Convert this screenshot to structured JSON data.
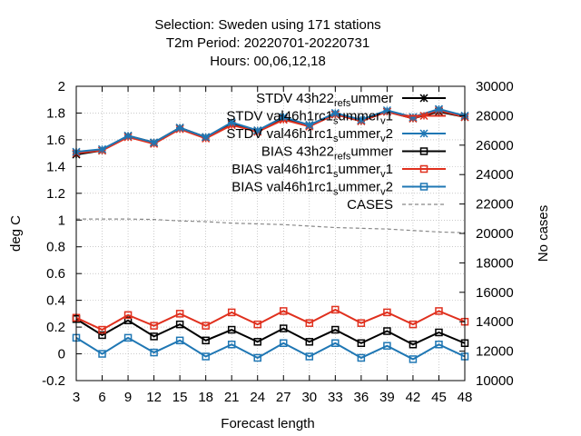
{
  "chart_data": {
    "type": "line",
    "title_lines": [
      "Selection: Sweden using   171 stations",
      "T2m   Period: 20220701-20220731",
      "Hours:  00,06,12,18"
    ],
    "xlabel": "Forecast length",
    "ylabel": "deg C",
    "y2label": "No cases",
    "x": [
      3,
      6,
      9,
      12,
      15,
      18,
      21,
      24,
      27,
      30,
      33,
      36,
      39,
      42,
      45,
      48
    ],
    "ylim": [
      -0.2,
      2.0
    ],
    "yticks": [
      "-0.2",
      "0",
      "0.2",
      "0.4",
      "0.6",
      "0.8",
      "1",
      "1.2",
      "1.4",
      "1.6",
      "1.8",
      "2"
    ],
    "y2lim": [
      10000,
      30000
    ],
    "y2ticks": [
      "10000",
      "12000",
      "14000",
      "16000",
      "18000",
      "20000",
      "22000",
      "24000",
      "26000",
      "28000",
      "30000"
    ],
    "grid": true,
    "legend_position": "top-right",
    "series": [
      {
        "name": "STDV 43h22_ref_summer",
        "color": "#000000",
        "marker": "star",
        "dash": "",
        "axis": "y1",
        "values": [
          1.49,
          1.52,
          1.63,
          1.58,
          1.69,
          1.62,
          1.72,
          1.67,
          1.76,
          1.71,
          1.79,
          1.74,
          1.81,
          1.76,
          1.81,
          1.77
        ]
      },
      {
        "name": "STDV val46h1rc1_summer_v1",
        "color": "#e0301e",
        "marker": "star",
        "dash": "",
        "axis": "y1",
        "values": [
          1.5,
          1.52,
          1.62,
          1.57,
          1.68,
          1.61,
          1.71,
          1.66,
          1.75,
          1.7,
          1.79,
          1.74,
          1.81,
          1.76,
          1.82,
          1.77
        ]
      },
      {
        "name": "STDV val46h1rc1_summer_v2",
        "color": "#1f77b4",
        "marker": "star",
        "dash": "",
        "axis": "y1",
        "values": [
          1.51,
          1.53,
          1.63,
          1.58,
          1.69,
          1.62,
          1.73,
          1.67,
          1.77,
          1.71,
          1.8,
          1.75,
          1.82,
          1.77,
          1.83,
          1.78
        ]
      },
      {
        "name": "BIAS 43h22_ref_summer",
        "color": "#000000",
        "marker": "square",
        "dash": "",
        "axis": "y1",
        "values": [
          0.26,
          0.14,
          0.25,
          0.13,
          0.22,
          0.1,
          0.18,
          0.09,
          0.19,
          0.09,
          0.18,
          0.08,
          0.17,
          0.07,
          0.16,
          0.08
        ]
      },
      {
        "name": "BIAS val46h1rc1_summer_v1",
        "color": "#e0301e",
        "marker": "square",
        "dash": "",
        "axis": "y1",
        "values": [
          0.27,
          0.18,
          0.29,
          0.21,
          0.3,
          0.21,
          0.31,
          0.22,
          0.32,
          0.23,
          0.33,
          0.23,
          0.31,
          0.22,
          0.32,
          0.24
        ]
      },
      {
        "name": "BIAS val46h1rc1_summer_v2",
        "color": "#1f77b4",
        "marker": "square",
        "dash": "",
        "axis": "y1",
        "values": [
          0.12,
          0.0,
          0.12,
          0.01,
          0.1,
          -0.02,
          0.07,
          -0.03,
          0.08,
          -0.02,
          0.08,
          -0.03,
          0.06,
          -0.04,
          0.07,
          -0.02
        ]
      },
      {
        "name": "CASES",
        "color": "#888888",
        "marker": "none",
        "dash": "4,3",
        "axis": "y2",
        "values": [
          20980,
          20980,
          20980,
          20950,
          20850,
          20800,
          20700,
          20650,
          20600,
          20500,
          20400,
          20350,
          20300,
          20200,
          20100,
          20050
        ]
      }
    ],
    "legend_labels": [
      {
        "parts": [
          [
            "STDV 43h22",
            ""
          ],
          [
            "ref",
            "sub"
          ],
          [
            "s",
            "sub"
          ],
          [
            "ummer",
            ""
          ]
        ]
      },
      {
        "parts": [
          [
            "STDV val46h1rc1",
            ""
          ],
          [
            "s",
            "sub"
          ],
          [
            "ummer",
            ""
          ],
          [
            "v",
            "sub"
          ],
          [
            "1",
            ""
          ]
        ]
      },
      {
        "parts": [
          [
            "STDV val46h1rc1",
            ""
          ],
          [
            "s",
            "sub"
          ],
          [
            "ummer",
            ""
          ],
          [
            "v",
            "sub"
          ],
          [
            "2",
            ""
          ]
        ]
      },
      {
        "parts": [
          [
            "BIAS 43h22",
            ""
          ],
          [
            "ref",
            "sub"
          ],
          [
            "s",
            "sub"
          ],
          [
            "ummer",
            ""
          ]
        ]
      },
      {
        "parts": [
          [
            "BIAS val46h1rc1",
            ""
          ],
          [
            "s",
            "sub"
          ],
          [
            "ummer",
            ""
          ],
          [
            "v",
            "sub"
          ],
          [
            "1",
            ""
          ]
        ]
      },
      {
        "parts": [
          [
            "BIAS val46h1rc1",
            ""
          ],
          [
            "s",
            "sub"
          ],
          [
            "ummer",
            ""
          ],
          [
            "v",
            "sub"
          ],
          [
            "2",
            ""
          ]
        ]
      },
      {
        "parts": [
          [
            "CASES",
            ""
          ]
        ]
      }
    ]
  }
}
